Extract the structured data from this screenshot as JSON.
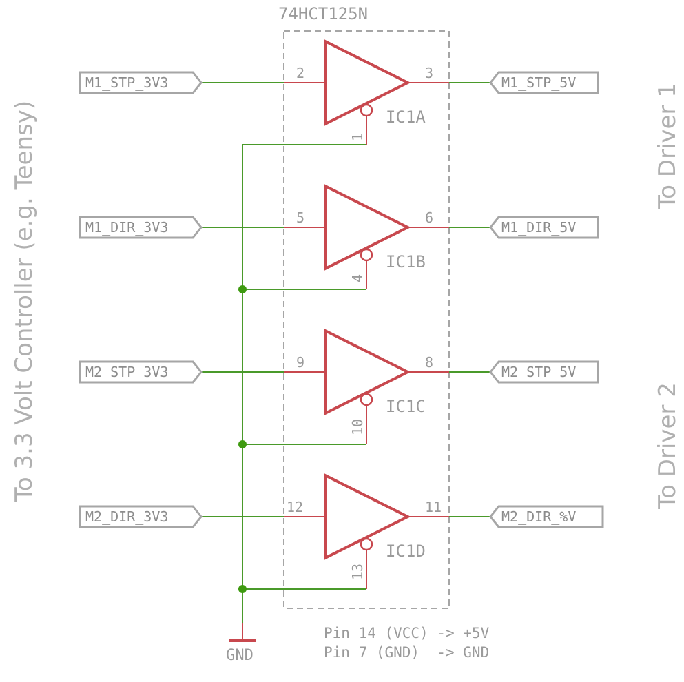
{
  "ic": {
    "part_name": "74HCT125N",
    "gates": [
      {
        "name": "IC1A",
        "in_pin": "2",
        "out_pin": "3",
        "oe_pin": "1"
      },
      {
        "name": "IC1B",
        "in_pin": "5",
        "out_pin": "6",
        "oe_pin": "4"
      },
      {
        "name": "IC1C",
        "in_pin": "9",
        "out_pin": "8",
        "oe_pin": "10"
      },
      {
        "name": "IC1D",
        "in_pin": "12",
        "out_pin": "11",
        "oe_pin": "13"
      }
    ]
  },
  "inputs": [
    "M1_STP_3V3",
    "M1_DIR_3V3",
    "M2_STP_3V3",
    "M2_DIR_3V3"
  ],
  "outputs": [
    "M1_STP_5V",
    "M1_DIR_5V",
    "M2_STP_5V",
    "M2_DIR_%V"
  ],
  "side_labels": {
    "left": "To 3.3 Volt Controller (e.g. Teensy)",
    "right_top": "To Driver 1",
    "right_bottom": "To Driver 2"
  },
  "ground": {
    "label": "GND"
  },
  "notes": [
    "Pin 14 (VCC) -> +5V",
    "Pin 7 (GND)  -> GND"
  ],
  "colors": {
    "wire": "#4a9a2a",
    "component": "#c8484e",
    "junction": "#3e9a10",
    "label": "#9a9a9a"
  }
}
